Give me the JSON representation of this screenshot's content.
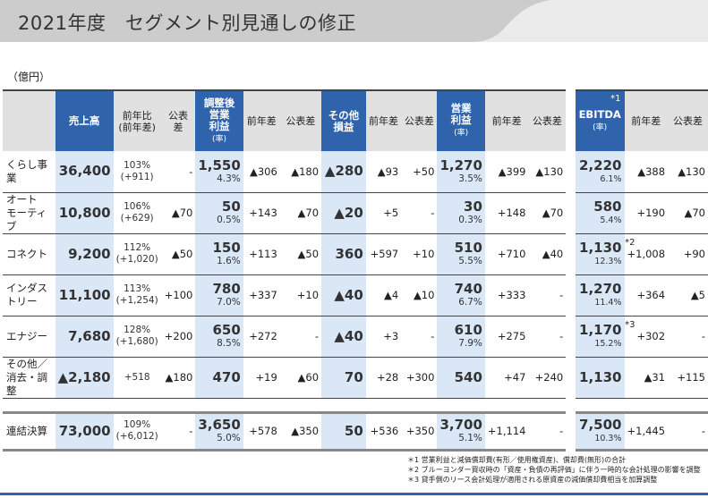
{
  "title": "2021年度　セグメント別見通しの修正",
  "unit": "（億円）",
  "colors": {
    "header_blue": "#2f63ab",
    "column_light_blue": "#dae7f7",
    "header_gray": "#e1e1e1"
  },
  "headers": {
    "sales": "売上高",
    "yoy_ratio": "前年比\n(前年差)",
    "vs_plan": "公表差",
    "adj_op": "調整後\n営業\n利益",
    "rate": "(率)",
    "yoy": "前年差",
    "other": "その他\n損益",
    "op": "営業\n利益",
    "ebitda": "EBITDA",
    "ebitda_note": "*1"
  },
  "rows": [
    {
      "name": "くらし事業",
      "sales": "36,400",
      "yoy_ratio": "103%",
      "yoy_diff": "(+911)",
      "sales_vs_plan": "-",
      "adj_op": "1,550",
      "adj_op_rate": "4.3%",
      "adj_op_yoy": "▲306",
      "adj_op_vs_plan": "▲180",
      "other": "▲280",
      "other_yoy": "▲93",
      "other_vs_plan": "+50",
      "op": "1,270",
      "op_rate": "3.5%",
      "op_yoy": "▲399",
      "op_vs_plan": "▲130",
      "ebitda": "2,220",
      "ebitda_note": "",
      "ebitda_rate": "6.1%",
      "ebitda_yoy": "▲388",
      "ebitda_vs_plan": "▲130"
    },
    {
      "name": "オート\nモーティブ",
      "sales": "10,800",
      "yoy_ratio": "106%",
      "yoy_diff": "(+629)",
      "sales_vs_plan": "▲70",
      "adj_op": "50",
      "adj_op_rate": "0.5%",
      "adj_op_yoy": "+143",
      "adj_op_vs_plan": "▲70",
      "other": "▲20",
      "other_yoy": "+5",
      "other_vs_plan": "-",
      "op": "30",
      "op_rate": "0.3%",
      "op_yoy": "+148",
      "op_vs_plan": "▲70",
      "ebitda": "580",
      "ebitda_note": "",
      "ebitda_rate": "5.4%",
      "ebitda_yoy": "+190",
      "ebitda_vs_plan": "▲70"
    },
    {
      "name": "コネクト",
      "sales": "9,200",
      "yoy_ratio": "112%",
      "yoy_diff": "(+1,020)",
      "sales_vs_plan": "▲50",
      "adj_op": "150",
      "adj_op_rate": "1.6%",
      "adj_op_yoy": "+113",
      "adj_op_vs_plan": "▲50",
      "other": "360",
      "other_yoy": "+597",
      "other_vs_plan": "+10",
      "op": "510",
      "op_rate": "5.5%",
      "op_yoy": "+710",
      "op_vs_plan": "▲40",
      "ebitda": "1,130",
      "ebitda_note": "*2",
      "ebitda_rate": "12.3%",
      "ebitda_yoy": "+1,008",
      "ebitda_vs_plan": "+90"
    },
    {
      "name": "インダストリー",
      "sales": "11,100",
      "yoy_ratio": "113%",
      "yoy_diff": "(+1,254)",
      "sales_vs_plan": "+100",
      "adj_op": "780",
      "adj_op_rate": "7.0%",
      "adj_op_yoy": "+337",
      "adj_op_vs_plan": "+10",
      "other": "▲40",
      "other_yoy": "▲4",
      "other_vs_plan": "▲10",
      "op": "740",
      "op_rate": "6.7%",
      "op_yoy": "+333",
      "op_vs_plan": "-",
      "ebitda": "1,270",
      "ebitda_note": "",
      "ebitda_rate": "11.4%",
      "ebitda_yoy": "+364",
      "ebitda_vs_plan": "▲5"
    },
    {
      "name": "エナジー",
      "sales": "7,680",
      "yoy_ratio": "128%",
      "yoy_diff": "(+1,680)",
      "sales_vs_plan": "+200",
      "adj_op": "650",
      "adj_op_rate": "8.5%",
      "adj_op_yoy": "+272",
      "adj_op_vs_plan": "-",
      "other": "▲40",
      "other_yoy": "+3",
      "other_vs_plan": "-",
      "op": "610",
      "op_rate": "7.9%",
      "op_yoy": "+275",
      "op_vs_plan": "-",
      "ebitda": "1,170",
      "ebitda_note": "*3",
      "ebitda_rate": "15.2%",
      "ebitda_yoy": "+302",
      "ebitda_vs_plan": "-"
    },
    {
      "name": "その他／\n消去・調整",
      "sales": "▲2,180",
      "yoy_ratio": "+518",
      "yoy_diff": "",
      "sales_vs_plan": "▲180",
      "adj_op": "470",
      "adj_op_rate": "",
      "adj_op_yoy": "+19",
      "adj_op_vs_plan": "▲60",
      "other": "70",
      "other_yoy": "+28",
      "other_vs_plan": "+300",
      "op": "540",
      "op_rate": "",
      "op_yoy": "+47",
      "op_vs_plan": "+240",
      "ebitda": "1,130",
      "ebitda_note": "",
      "ebitda_rate": "",
      "ebitda_yoy": "▲31",
      "ebitda_vs_plan": "+115"
    }
  ],
  "total": {
    "name": "連結決算",
    "sales": "73,000",
    "yoy_ratio": "109%",
    "yoy_diff": "(+6,012)",
    "sales_vs_plan": "-",
    "adj_op": "3,650",
    "adj_op_rate": "5.0%",
    "adj_op_yoy": "+578",
    "adj_op_vs_plan": "▲350",
    "other": "50",
    "other_yoy": "+536",
    "other_vs_plan": "+350",
    "op": "3,700",
    "op_rate": "5.1%",
    "op_yoy": "+1,114",
    "op_vs_plan": "-",
    "ebitda": "7,500",
    "ebitda_note": "",
    "ebitda_rate": "10.3%",
    "ebitda_yoy": "+1,445",
    "ebitda_vs_plan": "-"
  },
  "footnotes": [
    "＊1  営業利益と減価償却費(有形／使用権資産)、償却費(無形)の合計",
    "＊2  ブルーヨンダー買収時の「資産・負債の再評価」に伴う一時的な会計処理の影響を調整",
    "＊3  貸手側のリース会計処理が適用される原資産の減価償却費相当を加算調整"
  ]
}
